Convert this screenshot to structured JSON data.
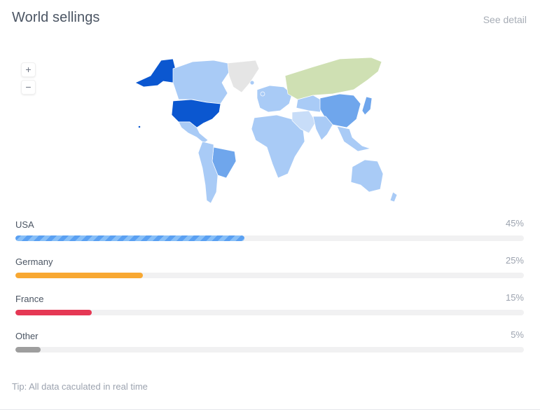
{
  "header": {
    "title": "World sellings",
    "see_detail": "See detail"
  },
  "map_controls": {
    "zoom_in": "+",
    "zoom_out": "−"
  },
  "map": {
    "icons": {
      "continent": "world-map"
    },
    "colors": {
      "usa": "#0b57d0",
      "china": "#6fa6ec",
      "russia": "#cfe0b3",
      "greenland": "#e5e5e5",
      "default": "#a9cbf6",
      "light": "#c8ddf8"
    }
  },
  "sellings": [
    {
      "country": "USA",
      "percent_label": "45%",
      "value": 45,
      "color": "#5aa0f2",
      "striped": true
    },
    {
      "country": "Germany",
      "percent_label": "25%",
      "value": 25,
      "color": "#f8a832",
      "striped": false
    },
    {
      "country": "France",
      "percent_label": "15%",
      "value": 15,
      "color": "#e53854",
      "striped": false
    },
    {
      "country": "Other",
      "percent_label": "5%",
      "value": 5,
      "color": "#9e9e9e",
      "striped": false
    }
  ],
  "footer": {
    "tip": "Tip: All data caculated in real time"
  }
}
